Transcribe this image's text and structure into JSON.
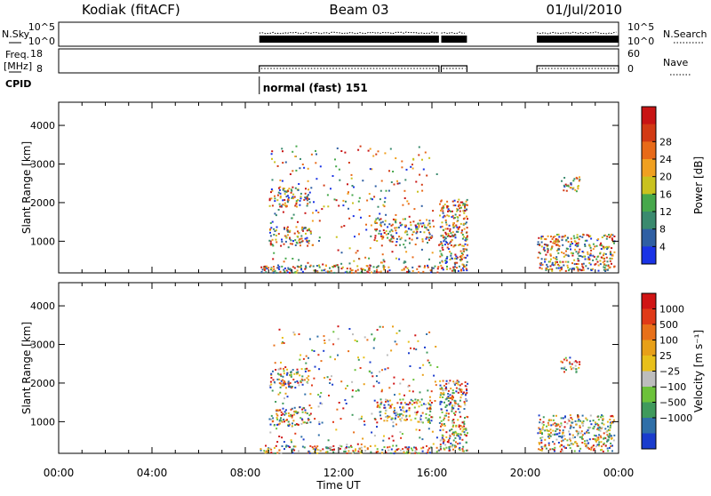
{
  "header": {
    "station": "Kodiak (fitACF)",
    "beam": "Beam 03",
    "date": "01/Jul/2010"
  },
  "top_panels": {
    "nsky": {
      "left_label": "N.Sky",
      "right_label": "N.Search",
      "left_ticks": [
        "10^5",
        "10^0"
      ],
      "right_ticks": [
        "10^5",
        "10^0"
      ]
    },
    "freq": {
      "left_label": "Freq.",
      "left_unit": "[MHz]",
      "right_label": "Nave",
      "left_ticks": [
        "18",
        "8"
      ],
      "right_ticks": [
        "60",
        "0"
      ]
    },
    "cpid": {
      "label": "CPID",
      "mode_text": "normal (fast) 151"
    }
  },
  "time_axis": {
    "label": "Time UT",
    "ticks": [
      "00:00",
      "04:00",
      "08:00",
      "12:00",
      "16:00",
      "20:00",
      "00:00"
    ]
  },
  "chart_data": [
    {
      "type": "heatmap",
      "title": "",
      "xlabel": "Time UT",
      "ylabel": "Slant Range [km]",
      "x_range_hours": [
        0,
        24
      ],
      "ylim": [
        180,
        4600
      ],
      "y_ticks": [
        1000,
        2000,
        3000,
        4000
      ],
      "colorbar": {
        "label": "Power [dB]",
        "ticks": [
          "4",
          "8",
          "12",
          "16",
          "20",
          "24",
          "28"
        ],
        "colors": [
          "#1a33e6",
          "#2f5fa3",
          "#3a8a6e",
          "#46a84b",
          "#c9c21e",
          "#f0a020",
          "#e86a18",
          "#d23a14",
          "#c81414"
        ]
      },
      "scatter_regions": [
        {
          "t0": 9.0,
          "t1": 16.3,
          "r0": 200,
          "r1": 3500,
          "density": 0.06
        },
        {
          "t0": 9.0,
          "t1": 10.8,
          "r0": 1900,
          "r1": 2400,
          "density": 0.5
        },
        {
          "t0": 9.0,
          "t1": 10.8,
          "r0": 900,
          "r1": 1400,
          "density": 0.5
        },
        {
          "t0": 13.5,
          "t1": 16.0,
          "r0": 1000,
          "r1": 1600,
          "density": 0.45
        },
        {
          "t0": 16.3,
          "t1": 17.5,
          "r0": 250,
          "r1": 2100,
          "density": 0.6
        },
        {
          "t0": 20.5,
          "t1": 23.8,
          "r0": 250,
          "r1": 1200,
          "density": 0.55
        },
        {
          "t0": 21.5,
          "t1": 22.3,
          "r0": 2300,
          "r1": 2700,
          "density": 0.5
        },
        {
          "t0": 8.6,
          "t1": 16.3,
          "r0": 200,
          "r1": 400,
          "density": 0.5
        }
      ]
    },
    {
      "type": "heatmap",
      "title": "",
      "xlabel": "Time UT",
      "ylabel": "Slant Range [km]",
      "x_range_hours": [
        0,
        24
      ],
      "ylim": [
        180,
        4600
      ],
      "y_ticks": [
        1000,
        2000,
        3000,
        4000
      ],
      "colorbar": {
        "label": "Velocity [m s⁻¹]",
        "ticks": [
          "1000",
          "500",
          "100",
          "25",
          "−25",
          "−100",
          "−500",
          "−1000"
        ],
        "colors": [
          "#1a3ccd",
          "#2f6fa8",
          "#3f9a5c",
          "#6cc23a",
          "#bdbdbd",
          "#e8c01a",
          "#e8a018",
          "#e8701a",
          "#e03a18",
          "#d01414"
        ]
      },
      "scatter_regions": [
        {
          "t0": 9.0,
          "t1": 16.3,
          "r0": 200,
          "r1": 3500,
          "density": 0.06
        },
        {
          "t0": 9.0,
          "t1": 10.8,
          "r0": 1900,
          "r1": 2400,
          "density": 0.5
        },
        {
          "t0": 9.0,
          "t1": 10.8,
          "r0": 900,
          "r1": 1400,
          "density": 0.5
        },
        {
          "t0": 13.5,
          "t1": 16.0,
          "r0": 1000,
          "r1": 1600,
          "density": 0.45
        },
        {
          "t0": 16.3,
          "t1": 17.5,
          "r0": 250,
          "r1": 2100,
          "density": 0.6
        },
        {
          "t0": 20.5,
          "t1": 23.8,
          "r0": 250,
          "r1": 1200,
          "density": 0.55
        },
        {
          "t0": 21.5,
          "t1": 22.3,
          "r0": 2300,
          "r1": 2700,
          "density": 0.5
        },
        {
          "t0": 8.6,
          "t1": 16.3,
          "r0": 200,
          "r1": 400,
          "density": 0.5
        }
      ]
    }
  ]
}
